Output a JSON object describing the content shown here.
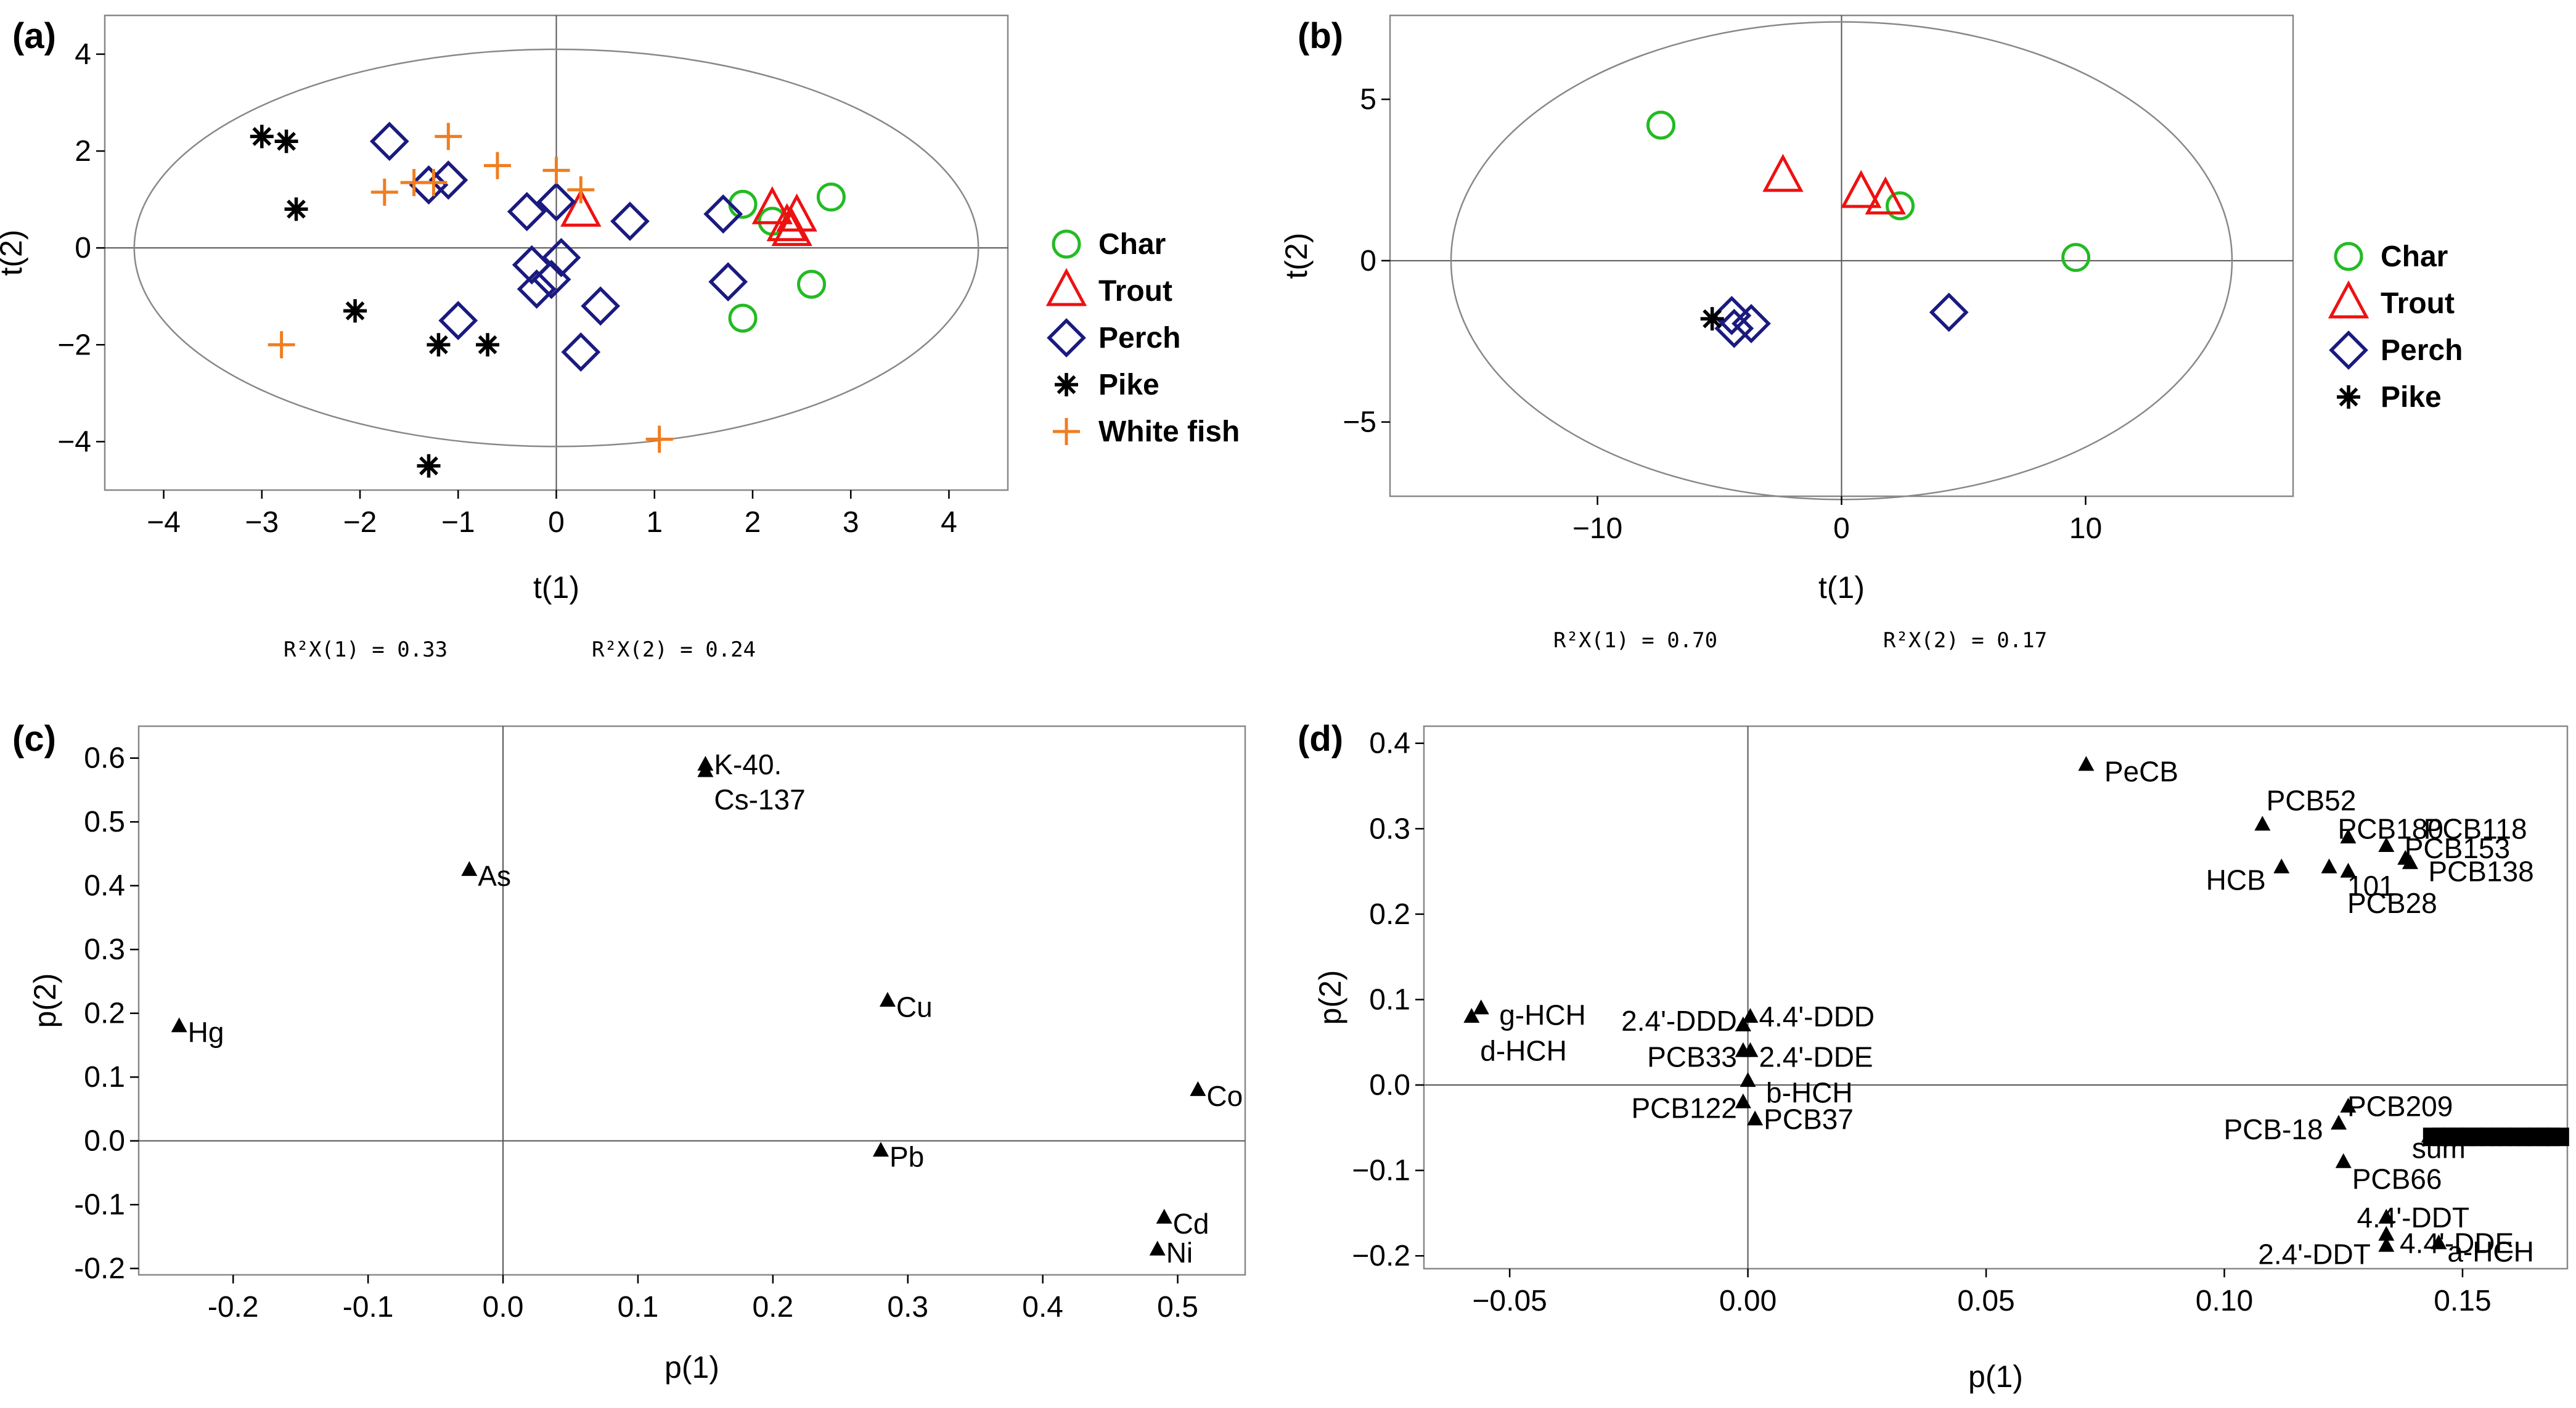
{
  "colors": {
    "char": "#22bb22",
    "trout": "#ee1111",
    "perch": "#1a1a80",
    "pike": "#000000",
    "whitefish": "#f07d20",
    "axis": "#000000",
    "frame": "#888888",
    "ellipse": "#888888"
  },
  "chart_data": [
    {
      "id": "a",
      "panel_label": "(a)",
      "type": "scatter",
      "xlabel": "t(1)",
      "ylabel": "t(2)",
      "xlim": [
        -4.6,
        4.6
      ],
      "ylim": [
        -5.0,
        4.8
      ],
      "xticks": [
        -4,
        -3,
        -2,
        -1,
        0,
        1,
        2,
        3,
        4
      ],
      "yticks": [
        -4,
        -2,
        0,
        2,
        4
      ],
      "ellipse": {
        "rx": 4.3,
        "ry": 4.1
      },
      "r2x1": "R²X(1) = 0.33",
      "r2x2": "R²X(2) = 0.24",
      "legend_position": "right",
      "series": [
        {
          "name": "Char",
          "marker": "circle",
          "color_key": "char",
          "points": [
            [
              1.9,
              0.9
            ],
            [
              2.8,
              1.05
            ],
            [
              2.6,
              -0.75
            ],
            [
              1.9,
              -1.45
            ],
            [
              2.2,
              0.55
            ]
          ]
        },
        {
          "name": "Trout",
          "marker": "triangle",
          "color_key": "trout",
          "points": [
            [
              0.25,
              0.75
            ],
            [
              2.2,
              0.8
            ],
            [
              2.45,
              0.65
            ],
            [
              2.35,
              0.45
            ],
            [
              2.4,
              0.35
            ]
          ]
        },
        {
          "name": "Perch",
          "marker": "diamond",
          "color_key": "perch",
          "points": [
            [
              -1.7,
              2.2
            ],
            [
              -1.3,
              1.3
            ],
            [
              -1.1,
              1.4
            ],
            [
              -0.3,
              0.75
            ],
            [
              0.0,
              0.95
            ],
            [
              0.75,
              0.55
            ],
            [
              1.7,
              0.7
            ],
            [
              -0.25,
              -0.35
            ],
            [
              0.05,
              -0.2
            ],
            [
              -0.2,
              -0.85
            ],
            [
              -0.05,
              -0.65
            ],
            [
              -1.0,
              -1.5
            ],
            [
              0.45,
              -1.2
            ],
            [
              0.25,
              -2.15
            ],
            [
              1.75,
              -0.7
            ]
          ]
        },
        {
          "name": "Pike",
          "marker": "asterisk",
          "color_key": "pike",
          "points": [
            [
              -3.0,
              2.3
            ],
            [
              -2.75,
              2.2
            ],
            [
              -2.65,
              0.8
            ],
            [
              -2.05,
              -1.3
            ],
            [
              -1.2,
              -2.0
            ],
            [
              -0.7,
              -2.0
            ],
            [
              -1.3,
              -4.5
            ]
          ]
        },
        {
          "name": "White fish",
          "marker": "plus",
          "color_key": "whitefish",
          "points": [
            [
              -1.75,
              1.15
            ],
            [
              -1.45,
              1.35
            ],
            [
              -1.1,
              2.3
            ],
            [
              -0.6,
              1.7
            ],
            [
              0.0,
              1.6
            ],
            [
              0.25,
              1.2
            ],
            [
              -1.25,
              1.35
            ],
            [
              -2.8,
              -2.0
            ],
            [
              1.05,
              -3.95
            ]
          ]
        }
      ]
    },
    {
      "id": "b",
      "panel_label": "(b)",
      "type": "scatter",
      "xlabel": "t(1)",
      "ylabel": "t(2)",
      "xlim": [
        -18.5,
        18.5
      ],
      "ylim": [
        -7.3,
        7.6
      ],
      "xticks": [
        -10,
        0,
        10
      ],
      "yticks": [
        -5,
        0,
        5
      ],
      "ellipse": {
        "rx": 16.0,
        "ry": 7.4
      },
      "r2x1": "R²X(1) = 0.70",
      "r2x2": "R²X(2) = 0.17",
      "legend_position": "right",
      "series": [
        {
          "name": "Char",
          "marker": "circle",
          "color_key": "char",
          "points": [
            [
              -7.4,
              4.2
            ],
            [
              2.4,
              1.7
            ],
            [
              9.6,
              0.1
            ]
          ]
        },
        {
          "name": "Trout",
          "marker": "triangle",
          "color_key": "trout",
          "points": [
            [
              -2.4,
              2.6
            ],
            [
              0.8,
              2.1
            ],
            [
              1.8,
              1.9
            ]
          ]
        },
        {
          "name": "Perch",
          "marker": "diamond",
          "color_key": "perch",
          "points": [
            [
              -4.5,
              -1.7
            ],
            [
              -4.4,
              -2.1
            ],
            [
              -3.7,
              -1.95
            ],
            [
              4.4,
              -1.6
            ]
          ]
        },
        {
          "name": "Pike",
          "marker": "asterisk",
          "color_key": "pike",
          "points": [
            [
              -5.3,
              -1.8
            ]
          ]
        }
      ]
    },
    {
      "id": "c",
      "panel_label": "(c)",
      "type": "scatter",
      "xlabel": "p(1)",
      "ylabel": "p(2)",
      "xlim": [
        -0.27,
        0.55
      ],
      "ylim": [
        -0.21,
        0.65
      ],
      "xticks": [
        -0.2,
        -0.1,
        0.0,
        0.1,
        0.2,
        0.3,
        0.4,
        0.5
      ],
      "xtick_labels": [
        "-0.2",
        "-0.1",
        "0.0",
        "0.1",
        "0.2",
        "0.3",
        "0.4",
        "0.5"
      ],
      "yticks": [
        -0.2,
        -0.1,
        0.0,
        0.1,
        0.2,
        0.3,
        0.4,
        0.5,
        0.6
      ],
      "ytick_labels": [
        "-0.2",
        "-0.1",
        "0.0",
        "0.1",
        "0.2",
        "0.3",
        "0.4",
        "0.5",
        "0.6"
      ],
      "points": [
        {
          "label": "K-40.",
          "x": 0.15,
          "y": 0.59,
          "anchor": "start",
          "dy": 0.0
        },
        {
          "label": "Cs-137",
          "x": 0.15,
          "y": 0.58,
          "anchor": "start",
          "dy": -0.045
        },
        {
          "label": "As",
          "x": -0.025,
          "y": 0.425,
          "anchor": "start",
          "dy": -0.01
        },
        {
          "label": "Hg",
          "x": -0.24,
          "y": 0.18,
          "anchor": "start",
          "dy": -0.01
        },
        {
          "label": "Cu",
          "x": 0.285,
          "y": 0.22,
          "anchor": "start",
          "dy": -0.01
        },
        {
          "label": "Co",
          "x": 0.515,
          "y": 0.08,
          "anchor": "start",
          "dy": -0.01
        },
        {
          "label": "Pb",
          "x": 0.28,
          "y": -0.015,
          "anchor": "start",
          "dy": -0.01
        },
        {
          "label": "Cd",
          "x": 0.49,
          "y": -0.12,
          "anchor": "start",
          "dy": -0.01
        },
        {
          "label": "Ni",
          "x": 0.485,
          "y": -0.17,
          "anchor": "start",
          "dy": -0.005
        }
      ]
    },
    {
      "id": "d",
      "panel_label": "(d)",
      "type": "scatter",
      "xlabel": "p(1)",
      "ylabel": "p(2)",
      "xlim": [
        -0.068,
        0.172
      ],
      "ylim": [
        -0.215,
        0.42
      ],
      "xticks": [
        -0.05,
        0.0,
        0.05,
        0.1,
        0.15
      ],
      "xtick_labels": [
        "−0.05",
        "0.00",
        "0.05",
        "0.10",
        "0.15"
      ],
      "yticks": [
        -0.2,
        -0.1,
        0.0,
        0.1,
        0.2,
        0.3,
        0.4
      ],
      "ytick_labels": [
        "−0.2",
        "−0.1",
        "0.0",
        "0.1",
        "0.2",
        "0.3",
        "0.4"
      ],
      "points": [
        {
          "label": "PeCB",
          "x": 0.071,
          "y": 0.375,
          "anchor": "start",
          "dx": 0.002,
          "dy": -0.008
        },
        {
          "label": "PCB52",
          "x": 0.108,
          "y": 0.305,
          "anchor": "start",
          "dx": -0.001,
          "dy": 0.028
        },
        {
          "label": "PCB180",
          "x": 0.126,
          "y": 0.29,
          "anchor": "start",
          "dx": -0.004,
          "dy": 0.01
        },
        {
          "label": "PCB118",
          "x": 0.134,
          "y": 0.28,
          "anchor": "start",
          "dx": 0.006,
          "dy": 0.02
        },
        {
          "label": "PCB153",
          "x": 0.138,
          "y": 0.265,
          "anchor": "start",
          "dx": -0.002,
          "dy": 0.012
        },
        {
          "label": "PCB138",
          "x": 0.139,
          "y": 0.26,
          "anchor": "start",
          "dx": 0.002,
          "dy": -0.01
        },
        {
          "label": "HCB",
          "x": 0.112,
          "y": 0.255,
          "anchor": "end",
          "dx": -0.002,
          "dy": -0.015
        },
        {
          "label": "101",
          "x": 0.126,
          "y": 0.25,
          "anchor": "start",
          "dx": -0.002,
          "dy": -0.017
        },
        {
          "label": "PCB28",
          "x": 0.122,
          "y": 0.255,
          "anchor": "start",
          "dx": 0.002,
          "dy": -0.042
        },
        {
          "label": "g-HCH",
          "x": -0.056,
          "y": 0.09,
          "anchor": "start",
          "dx": 0.002,
          "dy": -0.008
        },
        {
          "label": "d-HCH",
          "x": -0.058,
          "y": 0.08,
          "anchor": "start",
          "dx": 0.0,
          "dy": -0.04
        },
        {
          "label": "2.4'-DDD",
          "x": -0.001,
          "y": 0.07,
          "anchor": "end",
          "dx": 0.0,
          "dy": 0.005
        },
        {
          "label": "4.4'-DDD",
          "x": 0.0005,
          "y": 0.08,
          "anchor": "start",
          "dx": 0.0,
          "dy": 0.0
        },
        {
          "label": "PCB33",
          "x": -0.001,
          "y": 0.04,
          "anchor": "end",
          "dx": 0.0,
          "dy": -0.007
        },
        {
          "label": "2.4'-DDE",
          "x": 0.0005,
          "y": 0.04,
          "anchor": "start",
          "dx": 0.0,
          "dy": -0.007
        },
        {
          "label": "b-HCH",
          "x": 0.0,
          "y": 0.005,
          "anchor": "start",
          "dx": 0.002,
          "dy": -0.014
        },
        {
          "label": "PCB122",
          "x": -0.001,
          "y": -0.02,
          "anchor": "end",
          "dx": 0.0,
          "dy": -0.007
        },
        {
          "label": "PCB37",
          "x": 0.0015,
          "y": -0.04,
          "anchor": "start",
          "dx": 0.0,
          "dy": 0.0
        },
        {
          "label": "PCB209",
          "x": 0.126,
          "y": -0.025,
          "anchor": "start",
          "dx": -0.002,
          "dy": 0.0
        },
        {
          "label": "PCB-18",
          "x": 0.124,
          "y": -0.045,
          "anchor": "end",
          "dx": -0.002,
          "dy": -0.007
        },
        {
          "label": "PCB66",
          "x": 0.125,
          "y": -0.09,
          "anchor": "start",
          "dx": 0.0,
          "dy": -0.02
        },
        {
          "label": "sum",
          "x": 0.145,
          "y": -0.06,
          "anchor": "middle",
          "dx": 0.0,
          "dy": -0.014
        },
        {
          "label": "4.4'-DDT",
          "x": 0.134,
          "y": -0.155,
          "anchor": "start",
          "dx": -0.008,
          "dy": 0.0
        },
        {
          "label": "4.4'-DDE",
          "x": 0.134,
          "y": -0.175,
          "anchor": "start",
          "dx": 0.001,
          "dy": -0.01
        },
        {
          "label": "2.4'-DDT",
          "x": 0.134,
          "y": -0.188,
          "anchor": "end",
          "dx": -0.002,
          "dy": -0.01
        },
        {
          "label": "a-HCH",
          "x": 0.145,
          "y": -0.185,
          "anchor": "start",
          "dx": 0.0,
          "dy": -0.01
        }
      ],
      "cluster": {
        "y": -0.06,
        "x_values": [
          0.143,
          0.145,
          0.147,
          0.149,
          0.151,
          0.153,
          0.155,
          0.157,
          0.159,
          0.161,
          0.163,
          0.165,
          0.167,
          0.169
        ]
      }
    }
  ]
}
